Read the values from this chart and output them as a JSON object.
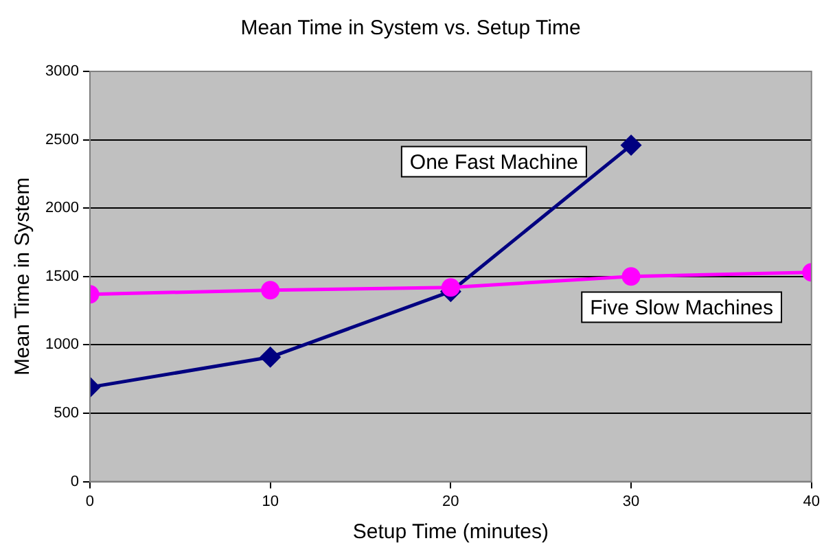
{
  "chart_data": {
    "type": "line",
    "title": "Mean Time in System vs. Setup Time",
    "xlabel": "Setup Time (minutes)",
    "ylabel": "Mean Time in System",
    "xlim": [
      0,
      40
    ],
    "xticks": [
      0,
      10,
      20,
      30,
      40
    ],
    "ylim": [
      0,
      3000
    ],
    "yticks": [
      0,
      500,
      1000,
      1500,
      2000,
      2500,
      3000
    ],
    "grid": "y",
    "legend": false,
    "series": [
      {
        "name": "One Fast Machine",
        "color": "#000080",
        "marker": "diamond",
        "x": [
          0,
          10,
          20,
          30
        ],
        "values": [
          690,
          910,
          1390,
          2460
        ]
      },
      {
        "name": "Five Slow Machines",
        "color": "#ff00ff",
        "marker": "circle",
        "x": [
          0,
          10,
          20,
          30,
          40
        ],
        "values": [
          1370,
          1400,
          1420,
          1500,
          1530
        ]
      }
    ]
  }
}
